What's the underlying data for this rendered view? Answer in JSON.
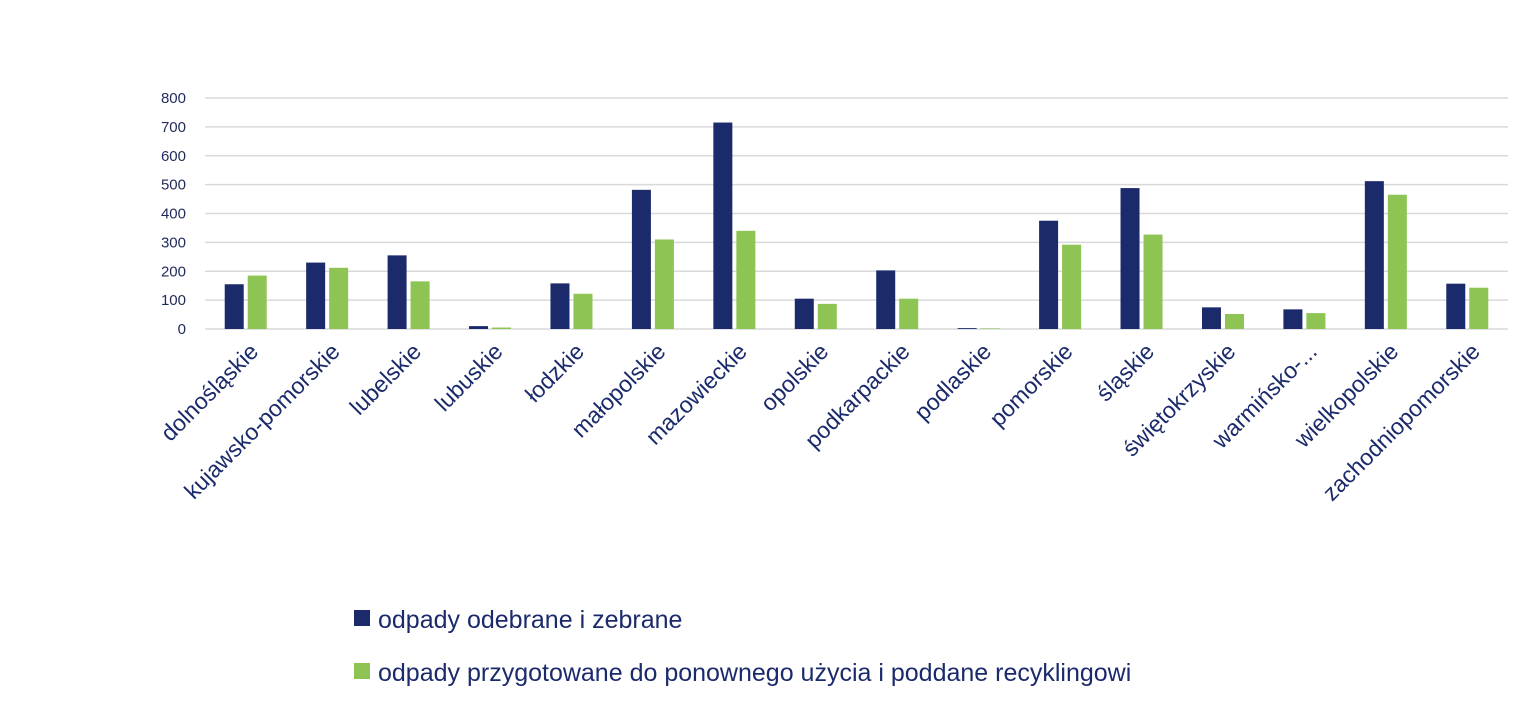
{
  "chart_data": {
    "type": "bar",
    "categories": [
      "dolnośląskie",
      "kujawsko-pomorskie",
      "lubelskie",
      "lubuskie",
      "łodzkie",
      "małopolskie",
      "mazowieckie",
      "opolskie",
      "podkarpackie",
      "podlaskie",
      "pomorskie",
      "śląskie",
      "świętokrzyskie",
      "warmińsko-...",
      "wielkopolskie",
      "zachodniopomorskie"
    ],
    "series": [
      {
        "name": "odpady odebrane i zebrane",
        "color": "#1b2a6b",
        "values": [
          155,
          230,
          255,
          10,
          158,
          482,
          715,
          105,
          203,
          3,
          375,
          488,
          75,
          68,
          512,
          157
        ]
      },
      {
        "name": "odpady przygotowane do ponownego użycia i poddane recyklingowi",
        "color": "#8dc453",
        "values": [
          185,
          212,
          165,
          5,
          122,
          310,
          340,
          87,
          105,
          2,
          292,
          327,
          52,
          55,
          465,
          143
        ]
      }
    ],
    "ylim": [
      0,
      800
    ],
    "yticks": [
      "0",
      "100",
      "200",
      "300",
      "400",
      "500",
      "600",
      "700",
      "800"
    ],
    "grid": true,
    "legend_position": "bottom"
  }
}
